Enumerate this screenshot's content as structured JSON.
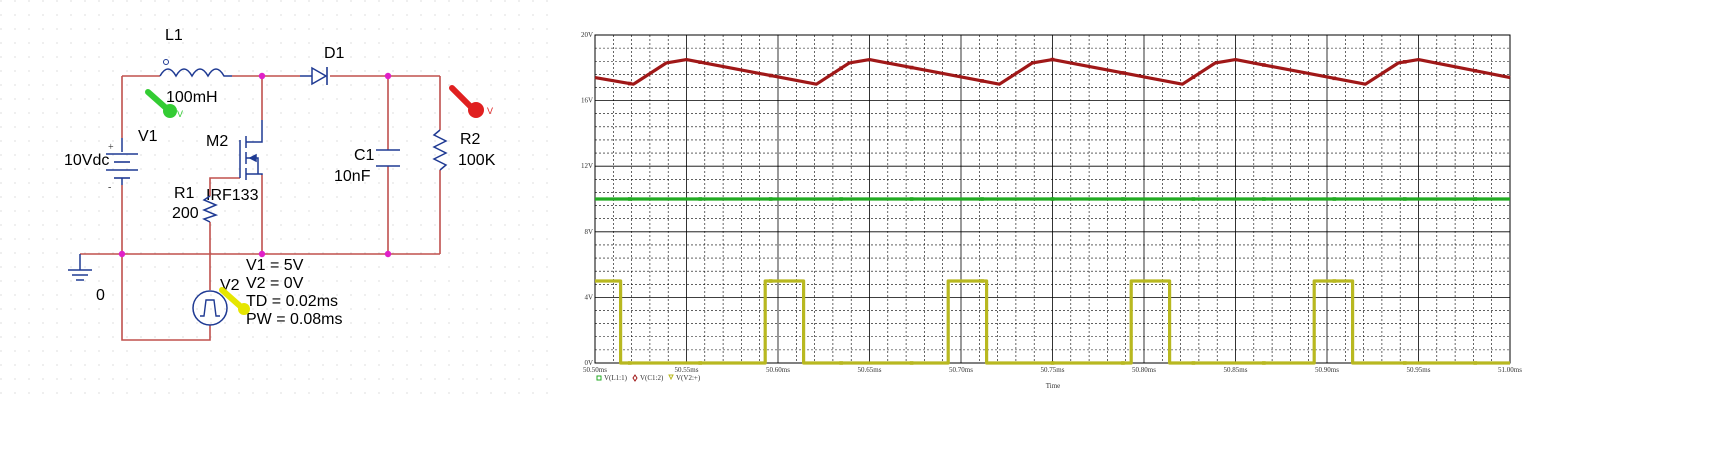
{
  "schematic": {
    "L1": {
      "name": "L1",
      "value": "100mH"
    },
    "D1": {
      "name": "D1"
    },
    "V1": {
      "name": "V1",
      "value": "10Vdc",
      "plus": "+",
      "minus": "-"
    },
    "M2": {
      "name": "M2",
      "model": "IRF133"
    },
    "R1": {
      "name": "R1",
      "value": "200"
    },
    "C1": {
      "name": "C1",
      "value": "10nF"
    },
    "R2": {
      "name": "R2",
      "value": "100K"
    },
    "ground": {
      "label": "0"
    },
    "V2": {
      "name": "V2",
      "params": [
        "V1 = 5V",
        "V2 = 0V",
        "TD = 0.02ms",
        "PW = 0.08ms"
      ]
    },
    "probe_v": "V",
    "colors": {
      "wire": "#c0504d",
      "node": "#e020c8",
      "component": "#1f3a93",
      "probe_green": "#33cc33",
      "probe_red": "#e02020",
      "probe_yellow": "#e6e600"
    }
  },
  "chart_data": {
    "type": "line",
    "x_range": [
      50.5,
      51.0
    ],
    "x_unit": "ms",
    "y_range": [
      0,
      20
    ],
    "y_unit": "V",
    "x_ticks": [
      "50.50ms",
      "50.55ms",
      "50.60ms",
      "50.65ms",
      "50.70ms",
      "50.75ms",
      "50.80ms",
      "50.85ms",
      "50.90ms",
      "50.95ms",
      "51.00ms"
    ],
    "y_ticks": [
      "0V",
      "4V",
      "8V",
      "12V",
      "16V",
      "20V"
    ],
    "xlabel": "Time",
    "grid": true,
    "series": [
      {
        "name": "V(L1:1)",
        "color": "#22aa22",
        "marker": "square",
        "x": [
          50.5,
          51.0
        ],
        "y": [
          10,
          10
        ]
      },
      {
        "name": "V(C1:2)",
        "color": "#a01818",
        "marker": "diamond",
        "x": [
          50.5,
          50.521,
          50.539,
          50.55,
          50.621,
          50.639,
          50.65,
          50.721,
          50.739,
          50.75,
          50.821,
          50.839,
          50.85,
          50.921,
          50.939,
          50.95,
          51.0
        ],
        "y": [
          17.4,
          17.0,
          18.3,
          18.5,
          17.0,
          18.3,
          18.5,
          17.0,
          18.3,
          18.5,
          17.0,
          18.3,
          18.5,
          17.0,
          18.3,
          18.5,
          17.4
        ]
      },
      {
        "name": "V(V2:+)",
        "color": "#b8b820",
        "marker": "triangle",
        "x": [
          50.5,
          50.514,
          50.514,
          50.593,
          50.593,
          50.614,
          50.614,
          50.693,
          50.693,
          50.714,
          50.714,
          50.793,
          50.793,
          50.814,
          50.814,
          50.893,
          50.893,
          50.914,
          50.914,
          51.0
        ],
        "y": [
          5,
          5,
          0,
          0,
          5,
          5,
          0,
          0,
          5,
          5,
          0,
          0,
          5,
          5,
          0,
          0,
          5,
          5,
          0,
          0
        ]
      }
    ]
  }
}
